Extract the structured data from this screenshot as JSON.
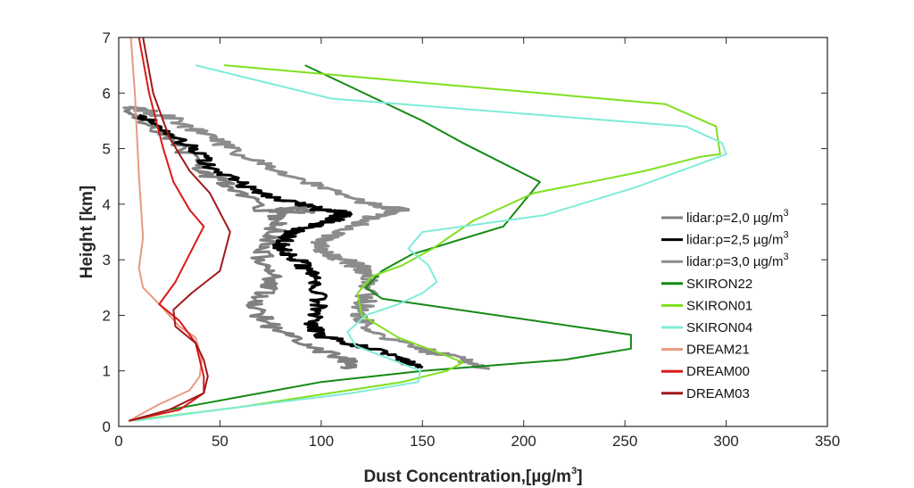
{
  "chart_data": {
    "type": "line",
    "title": "",
    "xlabel": "Dust Concentration,[µg/m",
    "xlabel_sup": "3",
    "xlabel_end": "]",
    "ylabel": "Height [km]",
    "xlim": [
      0,
      350
    ],
    "ylim": [
      0,
      7
    ],
    "xticks": [
      0,
      50,
      100,
      150,
      200,
      250,
      300,
      350
    ],
    "yticks": [
      0,
      1,
      2,
      3,
      4,
      5,
      6,
      7
    ],
    "grid": false,
    "legend_position": "right",
    "series": [
      {
        "name": "lidar:ρ=2,0 µg/m",
        "name_sup": "3",
        "color": "#808080",
        "width": 3,
        "jitter": 0.55,
        "x": [
          115,
          112,
          90,
          75,
          68,
          72,
          75,
          70,
          74,
          78,
          76,
          80,
          90,
          92,
          72,
          58,
          40,
          32,
          20,
          5
        ],
        "y": [
          1.05,
          1.2,
          1.5,
          1.8,
          2.1,
          2.4,
          2.7,
          3.0,
          3.3,
          3.6,
          3.75,
          3.9,
          3.95,
          3.85,
          3.9,
          4.3,
          4.6,
          5.0,
          5.3,
          5.75
        ]
      },
      {
        "name": "lidar:ρ=2,5 µg/m",
        "name_sup": "3",
        "color": "#000000",
        "width": 3,
        "jitter": 0.45,
        "x": [
          148,
          140,
          125,
          102,
          95,
          98,
          99,
          96,
          90,
          82,
          80,
          86,
          95,
          105,
          110,
          112,
          100,
          90,
          70,
          58,
          45,
          36,
          25,
          10
        ],
        "y": [
          1.05,
          1.2,
          1.4,
          1.6,
          1.8,
          2.1,
          2.4,
          2.7,
          2.95,
          3.15,
          3.3,
          3.5,
          3.6,
          3.7,
          3.8,
          3.85,
          3.9,
          4.0,
          4.2,
          4.4,
          4.7,
          5.0,
          5.3,
          5.6
        ]
      },
      {
        "name": "lidar:ρ=3,0 µg/m",
        "name_sup": "3",
        "color": "#8c8c8c",
        "width": 3,
        "jitter": 0.55,
        "x": [
          178,
          170,
          145,
          122,
          120,
          122,
          125,
          120,
          110,
          102,
          100,
          108,
          125,
          140,
          125,
          100,
          78,
          55,
          40,
          25,
          5
        ],
        "y": [
          1.05,
          1.2,
          1.45,
          1.7,
          2.0,
          2.3,
          2.6,
          2.85,
          3.0,
          3.15,
          3.3,
          3.5,
          3.75,
          3.9,
          4.0,
          4.3,
          4.6,
          5.0,
          5.3,
          5.55,
          5.75
        ]
      },
      {
        "name": "SKIRON22",
        "color": "#138a13",
        "width": 2,
        "x": [
          5,
          25,
          70,
          100,
          150,
          220,
          253,
          253,
          130,
          122,
          130,
          145,
          190,
          208,
          170,
          150,
          92
        ],
        "y": [
          0.1,
          0.3,
          0.6,
          0.8,
          1.0,
          1.2,
          1.4,
          1.65,
          2.3,
          2.5,
          2.8,
          3.1,
          3.6,
          4.4,
          5.1,
          5.5,
          6.5
        ]
      },
      {
        "name": "SKIRON01",
        "color": "#7fe020",
        "width": 2,
        "x": [
          5,
          60,
          140,
          162,
          170,
          160,
          138,
          120,
          118,
          125,
          140,
          155,
          175,
          205,
          240,
          260,
          287,
          297,
          295,
          270,
          52
        ],
        "y": [
          0.1,
          0.35,
          0.8,
          1.0,
          1.15,
          1.3,
          1.6,
          2.0,
          2.4,
          2.7,
          2.9,
          3.2,
          3.7,
          4.2,
          4.45,
          4.6,
          4.85,
          4.9,
          5.4,
          5.8,
          6.5
        ]
      },
      {
        "name": "SKIRON04",
        "color": "#7fecd8",
        "width": 2,
        "x": [
          8,
          60,
          115,
          148,
          149,
          135,
          117,
          113,
          122,
          138,
          150,
          157,
          153,
          143,
          150,
          210,
          255,
          300,
          298,
          280,
          105,
          38
        ],
        "y": [
          0.1,
          0.35,
          0.6,
          0.8,
          1.0,
          1.2,
          1.45,
          1.7,
          2.0,
          2.2,
          2.4,
          2.6,
          2.9,
          3.2,
          3.5,
          3.8,
          4.3,
          4.9,
          5.1,
          5.4,
          5.9,
          6.5
        ]
      },
      {
        "name": "DREAM21",
        "color": "#e89a80",
        "width": 2,
        "x": [
          5,
          20,
          35,
          40,
          41,
          38,
          30,
          20,
          12,
          10,
          12,
          10,
          8,
          6
        ],
        "y": [
          0.1,
          0.4,
          0.65,
          0.9,
          1.2,
          1.6,
          1.8,
          2.2,
          2.5,
          2.85,
          3.4,
          4.5,
          6.0,
          7.0
        ]
      },
      {
        "name": "DREAM00",
        "color": "#dd1818",
        "width": 2,
        "x": [
          5,
          30,
          42,
          42,
          40,
          38,
          30,
          20,
          28,
          42,
          35,
          27,
          22,
          15,
          10
        ],
        "y": [
          0.1,
          0.3,
          0.6,
          0.9,
          1.2,
          1.5,
          1.9,
          2.2,
          2.6,
          3.6,
          3.9,
          4.4,
          5.0,
          6.0,
          7.0
        ]
      },
      {
        "name": "DREAM03",
        "color": "#a01818",
        "width": 2,
        "x": [
          5,
          25,
          42,
          44,
          42,
          38,
          28,
          27,
          36,
          50,
          55,
          45,
          35,
          25,
          17,
          12
        ],
        "y": [
          0.1,
          0.3,
          0.6,
          0.9,
          1.2,
          1.5,
          1.8,
          2.1,
          2.4,
          2.8,
          3.5,
          4.2,
          4.6,
          5.2,
          6.0,
          7.0
        ]
      }
    ]
  }
}
